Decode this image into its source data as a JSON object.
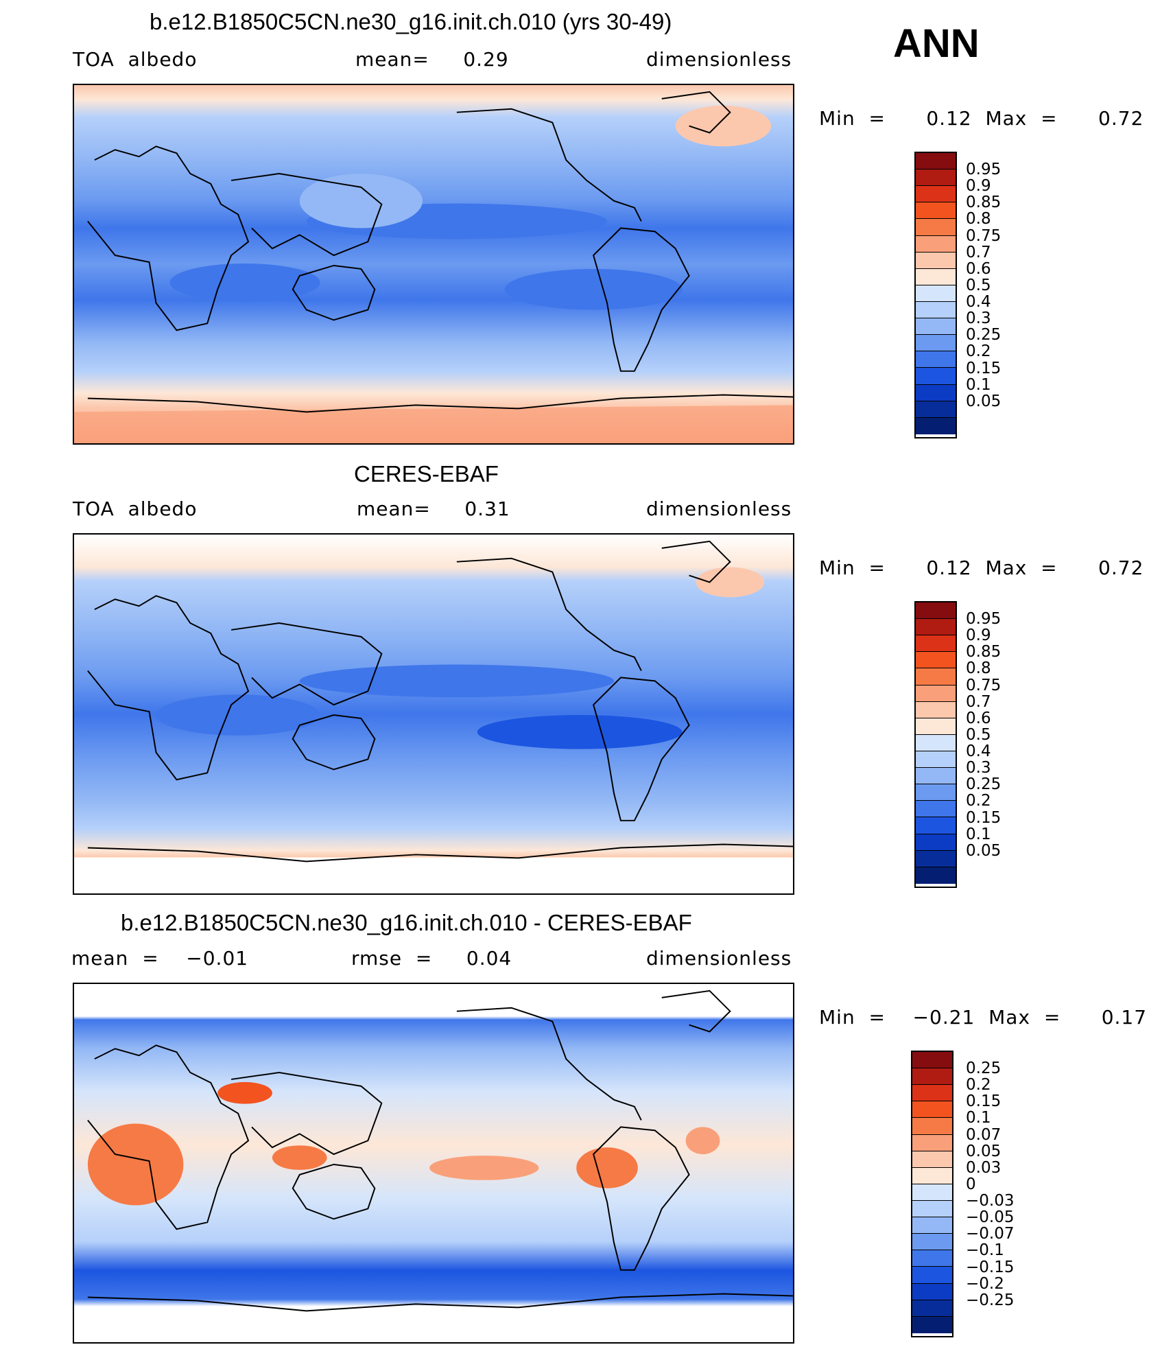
{
  "season": "ANN",
  "panels": [
    {
      "id": "model",
      "title": "b.e12.B1850C5CN.ne30_g16.init.ch.010 (yrs 30-49)",
      "left_label": "TOA  albedo",
      "center_label": "mean=     0.29",
      "right_label": "dimensionless",
      "minmax": "Min  =      0.12  Max  =      0.72",
      "colorbar": {
        "labels": [
          "0.95",
          "0.9",
          "0.85",
          "0.8",
          "0.75",
          "0.7",
          "0.6",
          "0.5",
          "0.4",
          "0.3",
          "0.25",
          "0.2",
          "0.15",
          "0.1",
          "0.05"
        ],
        "colors": [
          "#850d0f",
          "#b01b12",
          "#dc3217",
          "#f2531f",
          "#f67a45",
          "#f9a07a",
          "#fcc8ad",
          "#fde7d7",
          "#d5e5fb",
          "#b5d0fa",
          "#93b8f5",
          "#6b9af0",
          "#3f76ea",
          "#1c55e0",
          "#0c3cc4",
          "#072d9b",
          "#041f72"
        ]
      }
    },
    {
      "id": "obs",
      "title": "CERES-EBAF",
      "left_label": "TOA  albedo",
      "center_label": "mean=     0.31",
      "right_label": "dimensionless",
      "minmax": "Min  =      0.12  Max  =      0.72",
      "colorbar": {
        "labels": [
          "0.95",
          "0.9",
          "0.85",
          "0.8",
          "0.75",
          "0.7",
          "0.6",
          "0.5",
          "0.4",
          "0.3",
          "0.25",
          "0.2",
          "0.15",
          "0.1",
          "0.05"
        ],
        "colors": [
          "#850d0f",
          "#b01b12",
          "#dc3217",
          "#f2531f",
          "#f67a45",
          "#f9a07a",
          "#fcc8ad",
          "#fde7d7",
          "#d5e5fb",
          "#b5d0fa",
          "#93b8f5",
          "#6b9af0",
          "#3f76ea",
          "#1c55e0",
          "#0c3cc4",
          "#072d9b",
          "#041f72"
        ]
      }
    },
    {
      "id": "diff",
      "title": "b.e12.B1850C5CN.ne30_g16.init.ch.010 - CERES-EBAF",
      "left_label": "mean  =    −0.01",
      "center_label": "rmse  =     0.04",
      "right_label": "dimensionless",
      "minmax": "Min  =    −0.21  Max  =      0.17",
      "colorbar": {
        "labels": [
          "0.25",
          "0.2",
          "0.15",
          "0.1",
          "0.07",
          "0.05",
          "0.03",
          "0",
          "−0.03",
          "−0.05",
          "−0.07",
          "−0.1",
          "−0.15",
          "−0.2",
          "−0.25"
        ],
        "colors": [
          "#850d0f",
          "#b01b12",
          "#dc3217",
          "#f2531f",
          "#f67a45",
          "#f9a07a",
          "#fcc8ad",
          "#fde7d7",
          "#d5e5fb",
          "#b5d0fa",
          "#93b8f5",
          "#6b9af0",
          "#3f76ea",
          "#1c55e0",
          "#0c3cc4",
          "#072d9b",
          "#041f72"
        ]
      }
    }
  ]
}
